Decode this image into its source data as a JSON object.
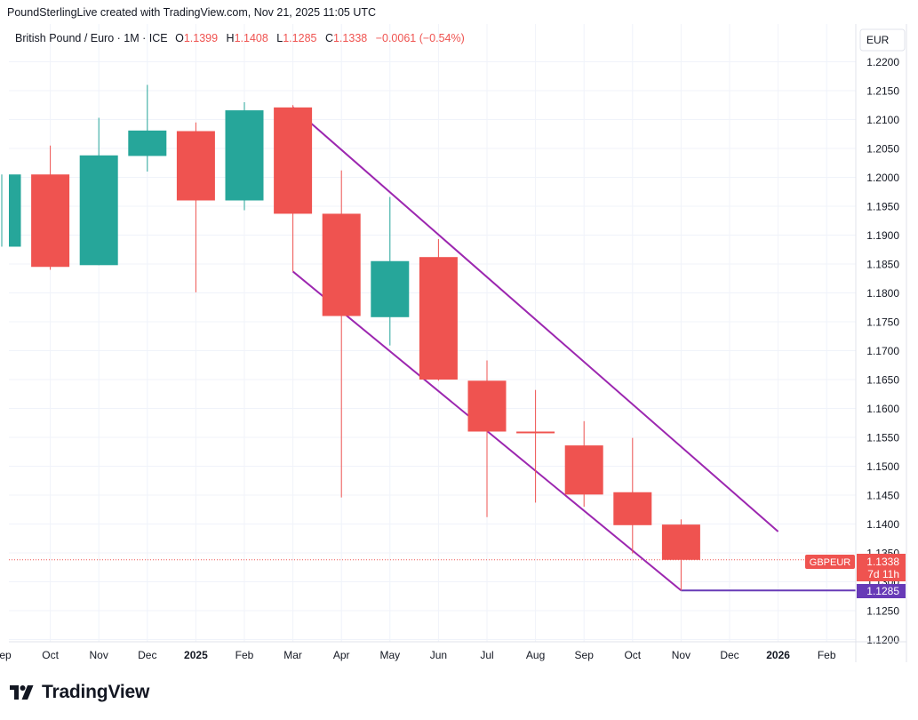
{
  "header": {
    "text": "PoundSterlingLive created with TradingView.com, Nov 21, 2025 11:05 UTC"
  },
  "legend": {
    "symbol": "British Pound / Euro · 1M · ICE",
    "open_label": "O",
    "open": "1.1399",
    "high_label": "H",
    "high": "1.1408",
    "low_label": "L",
    "low": "1.1285",
    "close_label": "C",
    "close": "1.1338",
    "change": "−0.0061 (−0.54%)"
  },
  "currency": "EUR",
  "price_badge": {
    "name": "GBPEUR",
    "price": "1.1338",
    "countdown": "7d 11h"
  },
  "low_badge": "1.1285",
  "brand": {
    "name": "TradingView"
  },
  "colors": {
    "up": "#26a69a",
    "down": "#ef5350",
    "channel": "#9c27b0",
    "low_line": "#673ab7"
  },
  "chart_data": {
    "type": "candlestick",
    "ylim": [
      1.12,
      1.22
    ],
    "y_ticks": [
      "1.1200",
      "1.1250",
      "1.1300",
      "1.1350",
      "1.1400",
      "1.1450",
      "1.1500",
      "1.1550",
      "1.1600",
      "1.1650",
      "1.1700",
      "1.1750",
      "1.1800",
      "1.1850",
      "1.1900",
      "1.1950",
      "1.2000",
      "1.2050",
      "1.2100",
      "1.2150",
      "1.2200"
    ],
    "x_ticks": [
      "Sep",
      "Oct",
      "Nov",
      "Dec",
      "2025",
      "Feb",
      "Mar",
      "Apr",
      "May",
      "Jun",
      "Jul",
      "Aug",
      "Sep",
      "Oct",
      "Nov",
      "Dec",
      "2026",
      "Feb"
    ],
    "candles": [
      {
        "month": "2024-09",
        "open": 1.188,
        "high": 1.2005,
        "low": 1.188,
        "close": 1.2005
      },
      {
        "month": "2024-10",
        "open": 1.2005,
        "high": 1.2055,
        "low": 1.184,
        "close": 1.1845
      },
      {
        "month": "2024-11",
        "open": 1.1848,
        "high": 1.2103,
        "low": 1.1848,
        "close": 1.2038
      },
      {
        "month": "2024-12",
        "open": 1.2037,
        "high": 1.216,
        "low": 1.201,
        "close": 1.2081
      },
      {
        "month": "2025-01",
        "open": 1.208,
        "high": 1.2095,
        "low": 1.1801,
        "close": 1.196
      },
      {
        "month": "2025-02",
        "open": 1.196,
        "high": 1.213,
        "low": 1.1943,
        "close": 1.2116
      },
      {
        "month": "2025-03",
        "open": 1.2121,
        "high": 1.2125,
        "low": 1.1837,
        "close": 1.1937
      },
      {
        "month": "2025-04",
        "open": 1.1937,
        "high": 1.2012,
        "low": 1.1446,
        "close": 1.176
      },
      {
        "month": "2025-05",
        "open": 1.1758,
        "high": 1.1966,
        "low": 1.1709,
        "close": 1.1855
      },
      {
        "month": "2025-06",
        "open": 1.1862,
        "high": 1.1893,
        "low": 1.1648,
        "close": 1.165
      },
      {
        "month": "2025-07",
        "open": 1.1648,
        "high": 1.1683,
        "low": 1.1412,
        "close": 1.156
      },
      {
        "month": "2025-08",
        "open": 1.156,
        "high": 1.1632,
        "low": 1.1437,
        "close": 1.1557
      },
      {
        "month": "2025-09",
        "open": 1.1536,
        "high": 1.1578,
        "low": 1.143,
        "close": 1.1451
      },
      {
        "month": "2025-10",
        "open": 1.1455,
        "high": 1.1549,
        "low": 1.1349,
        "close": 1.1398
      },
      {
        "month": "2025-11",
        "open": 1.1399,
        "high": 1.1408,
        "low": 1.1285,
        "close": 1.1338
      }
    ],
    "channel_lines": [
      {
        "from": {
          "month": "2025-03",
          "price": 1.2121
        },
        "to": {
          "month": "2026-01",
          "price": 1.1387
        }
      },
      {
        "from": {
          "month": "2025-03",
          "price": 1.1837
        },
        "to": {
          "month": "2025-11",
          "price": 1.1285
        }
      }
    ],
    "horizontal_line": {
      "price": 1.1285,
      "from_month": "2025-11"
    },
    "last_price": 1.1338,
    "grid": true,
    "price_axis": "right"
  }
}
